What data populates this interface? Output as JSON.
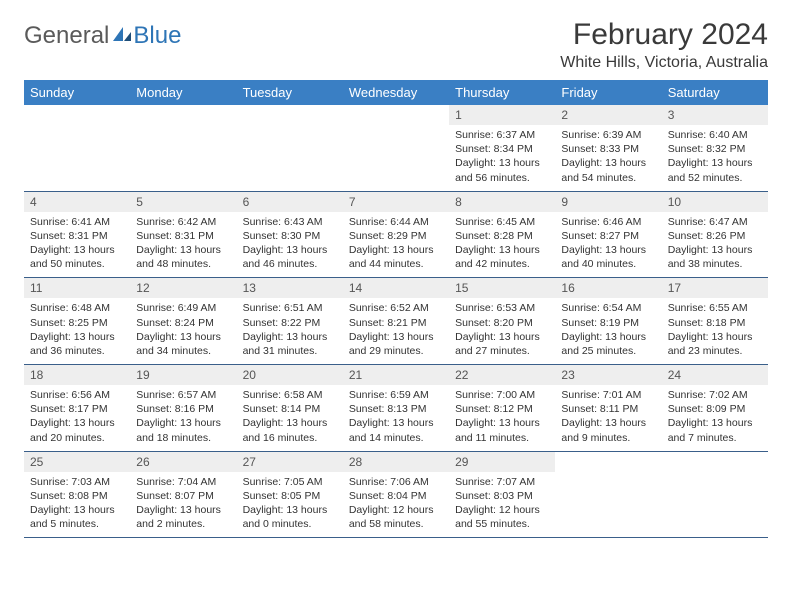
{
  "logo": {
    "text1": "General",
    "text2": "Blue"
  },
  "title": {
    "month": "February 2024",
    "location": "White Hills, Victoria, Australia"
  },
  "colors": {
    "header_bg": "#3a7fc4",
    "header_text": "#ffffff",
    "daynum_bg": "#eeeeee",
    "rule": "#3a5f8a",
    "logo_gray": "#5a5a5a",
    "logo_blue": "#2e75b6"
  },
  "weekdays": [
    "Sunday",
    "Monday",
    "Tuesday",
    "Wednesday",
    "Thursday",
    "Friday",
    "Saturday"
  ],
  "weeks": [
    [
      null,
      null,
      null,
      null,
      {
        "n": "1",
        "sr": "6:37 AM",
        "ss": "8:34 PM",
        "dl": "13 hours and 56 minutes."
      },
      {
        "n": "2",
        "sr": "6:39 AM",
        "ss": "8:33 PM",
        "dl": "13 hours and 54 minutes."
      },
      {
        "n": "3",
        "sr": "6:40 AM",
        "ss": "8:32 PM",
        "dl": "13 hours and 52 minutes."
      }
    ],
    [
      {
        "n": "4",
        "sr": "6:41 AM",
        "ss": "8:31 PM",
        "dl": "13 hours and 50 minutes."
      },
      {
        "n": "5",
        "sr": "6:42 AM",
        "ss": "8:31 PM",
        "dl": "13 hours and 48 minutes."
      },
      {
        "n": "6",
        "sr": "6:43 AM",
        "ss": "8:30 PM",
        "dl": "13 hours and 46 minutes."
      },
      {
        "n": "7",
        "sr": "6:44 AM",
        "ss": "8:29 PM",
        "dl": "13 hours and 44 minutes."
      },
      {
        "n": "8",
        "sr": "6:45 AM",
        "ss": "8:28 PM",
        "dl": "13 hours and 42 minutes."
      },
      {
        "n": "9",
        "sr": "6:46 AM",
        "ss": "8:27 PM",
        "dl": "13 hours and 40 minutes."
      },
      {
        "n": "10",
        "sr": "6:47 AM",
        "ss": "8:26 PM",
        "dl": "13 hours and 38 minutes."
      }
    ],
    [
      {
        "n": "11",
        "sr": "6:48 AM",
        "ss": "8:25 PM",
        "dl": "13 hours and 36 minutes."
      },
      {
        "n": "12",
        "sr": "6:49 AM",
        "ss": "8:24 PM",
        "dl": "13 hours and 34 minutes."
      },
      {
        "n": "13",
        "sr": "6:51 AM",
        "ss": "8:22 PM",
        "dl": "13 hours and 31 minutes."
      },
      {
        "n": "14",
        "sr": "6:52 AM",
        "ss": "8:21 PM",
        "dl": "13 hours and 29 minutes."
      },
      {
        "n": "15",
        "sr": "6:53 AM",
        "ss": "8:20 PM",
        "dl": "13 hours and 27 minutes."
      },
      {
        "n": "16",
        "sr": "6:54 AM",
        "ss": "8:19 PM",
        "dl": "13 hours and 25 minutes."
      },
      {
        "n": "17",
        "sr": "6:55 AM",
        "ss": "8:18 PM",
        "dl": "13 hours and 23 minutes."
      }
    ],
    [
      {
        "n": "18",
        "sr": "6:56 AM",
        "ss": "8:17 PM",
        "dl": "13 hours and 20 minutes."
      },
      {
        "n": "19",
        "sr": "6:57 AM",
        "ss": "8:16 PM",
        "dl": "13 hours and 18 minutes."
      },
      {
        "n": "20",
        "sr": "6:58 AM",
        "ss": "8:14 PM",
        "dl": "13 hours and 16 minutes."
      },
      {
        "n": "21",
        "sr": "6:59 AM",
        "ss": "8:13 PM",
        "dl": "13 hours and 14 minutes."
      },
      {
        "n": "22",
        "sr": "7:00 AM",
        "ss": "8:12 PM",
        "dl": "13 hours and 11 minutes."
      },
      {
        "n": "23",
        "sr": "7:01 AM",
        "ss": "8:11 PM",
        "dl": "13 hours and 9 minutes."
      },
      {
        "n": "24",
        "sr": "7:02 AM",
        "ss": "8:09 PM",
        "dl": "13 hours and 7 minutes."
      }
    ],
    [
      {
        "n": "25",
        "sr": "7:03 AM",
        "ss": "8:08 PM",
        "dl": "13 hours and 5 minutes."
      },
      {
        "n": "26",
        "sr": "7:04 AM",
        "ss": "8:07 PM",
        "dl": "13 hours and 2 minutes."
      },
      {
        "n": "27",
        "sr": "7:05 AM",
        "ss": "8:05 PM",
        "dl": "13 hours and 0 minutes."
      },
      {
        "n": "28",
        "sr": "7:06 AM",
        "ss": "8:04 PM",
        "dl": "12 hours and 58 minutes."
      },
      {
        "n": "29",
        "sr": "7:07 AM",
        "ss": "8:03 PM",
        "dl": "12 hours and 55 minutes."
      },
      null,
      null
    ]
  ],
  "labels": {
    "sunrise": "Sunrise:",
    "sunset": "Sunset:",
    "daylight": "Daylight:"
  }
}
